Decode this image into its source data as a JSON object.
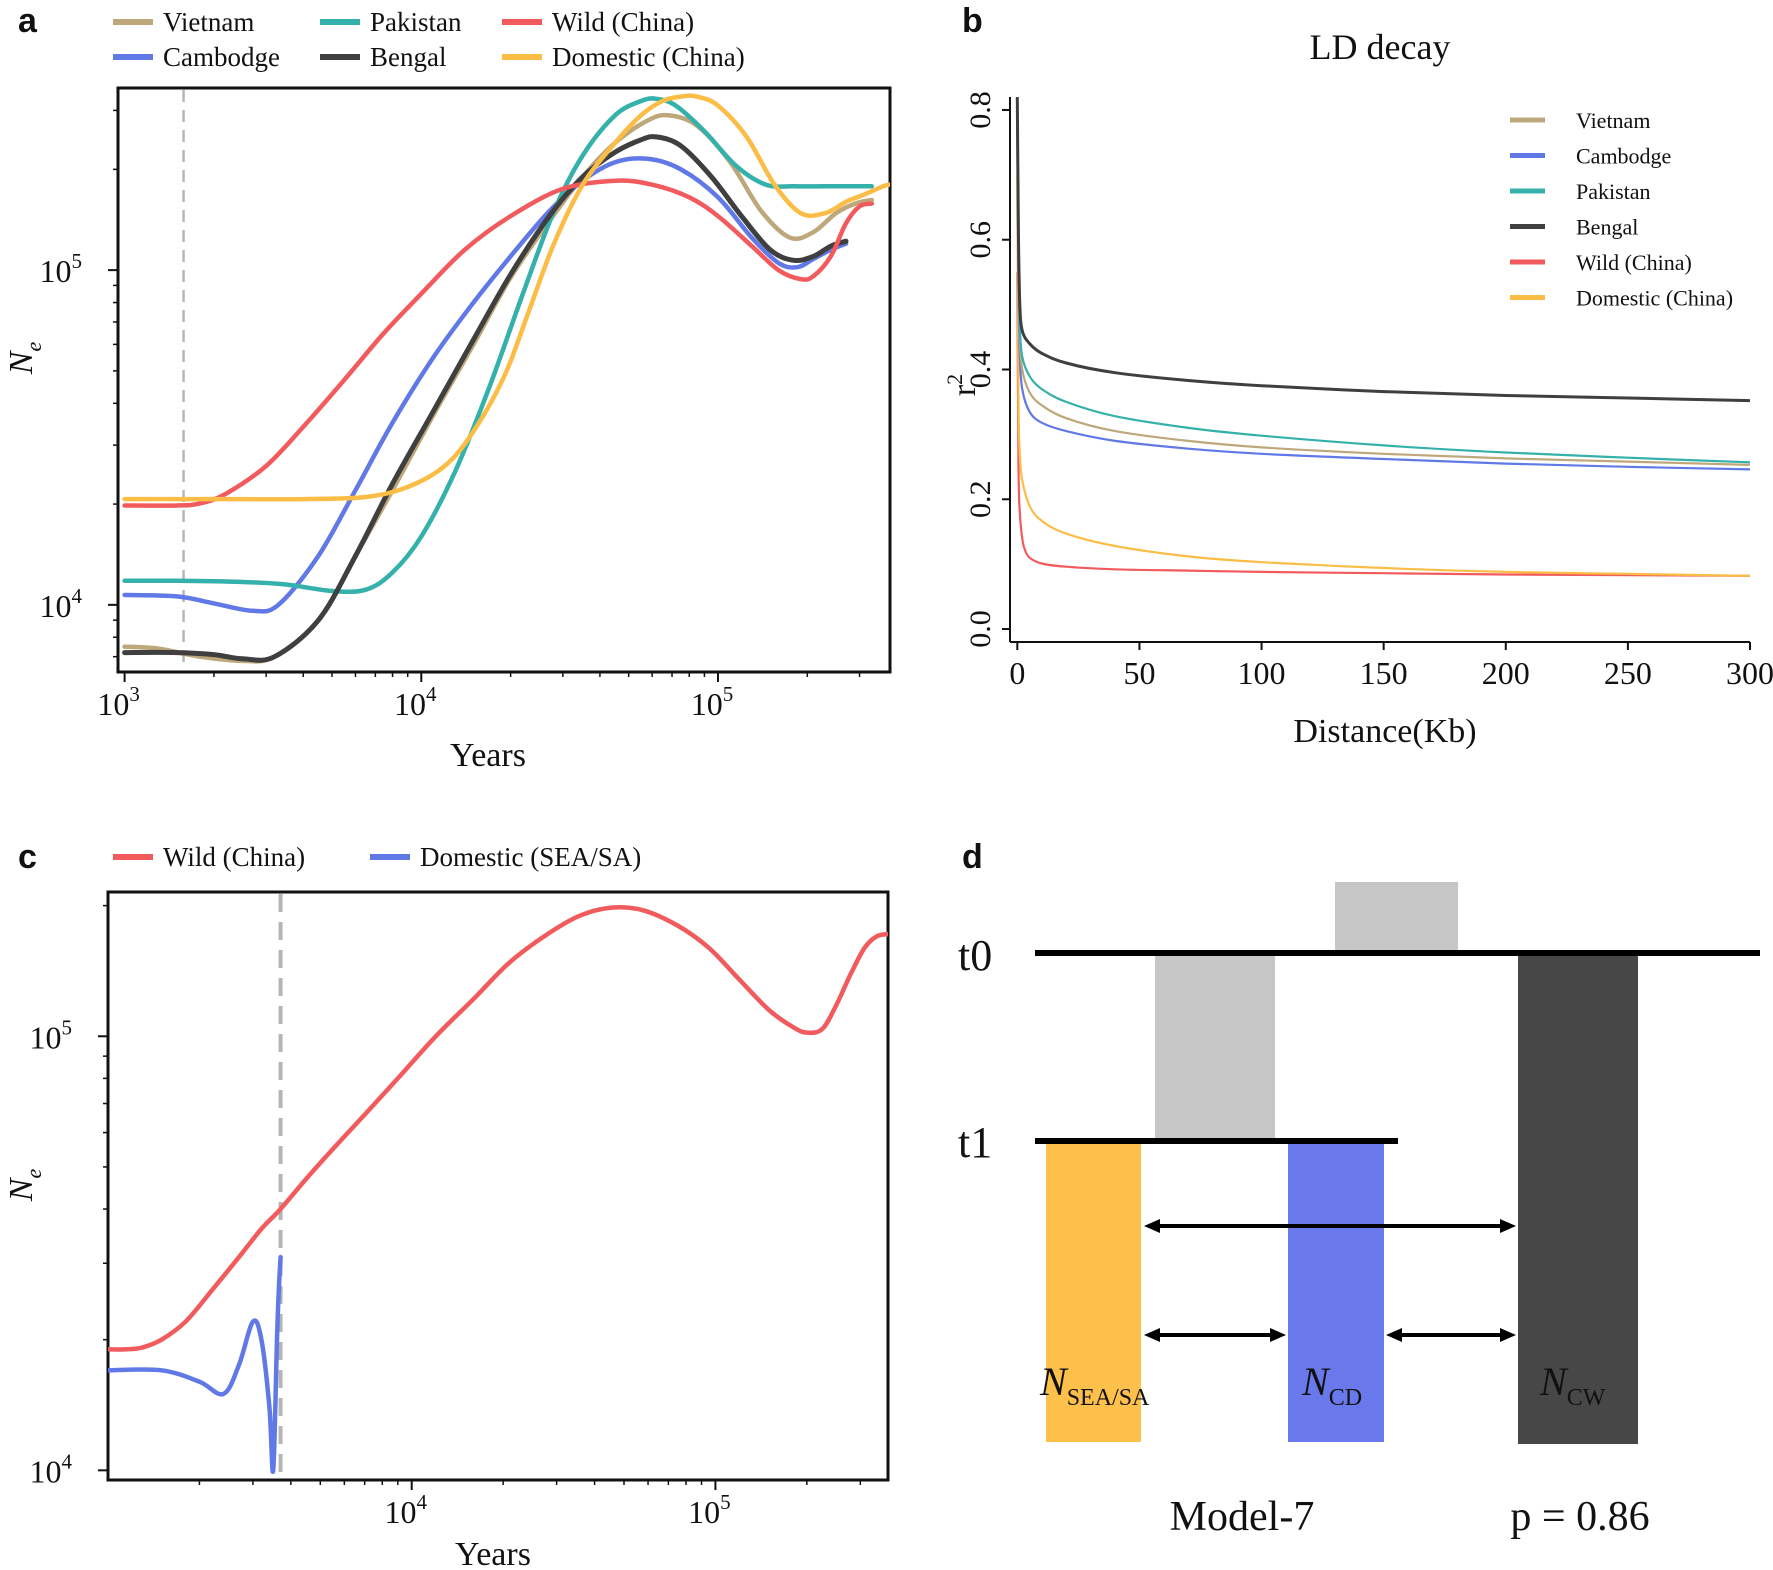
{
  "colors": {
    "Vietnam": "#bea77a",
    "Cambodge": "#6179e6",
    "Pakistan": "#33b1aa",
    "Bengal": "#3f3f3f",
    "Wild (China)": "#f25b5e",
    "Domestic (China)": "#fbbd46",
    "Domestic (SEA/SA)": "#6179e6",
    "NSEA/SA": "#fdc04b",
    "NCD": "#6979eb",
    "NCW": "#474747",
    "ancestral": "#c6c6c6"
  },
  "chart_data": [
    {
      "panel": "a",
      "type": "line",
      "xscale": "log",
      "yscale": "log",
      "xlabel": "Years",
      "ylabel_main": "N",
      "ylabel_sub": "e",
      "xlim": [
        950,
        380000
      ],
      "ylim": [
        6300,
        350000
      ],
      "xticks": [
        {
          "base": "10",
          "exp": "3"
        },
        {
          "base": "10",
          "exp": "4"
        },
        {
          "base": "10",
          "exp": "5"
        }
      ],
      "yticks": [
        {
          "base": "10",
          "exp": "4"
        },
        {
          "base": "10",
          "exp": "5"
        }
      ],
      "vline_x": 1580,
      "series": [
        {
          "name": "Vietnam",
          "x": [
            1000,
            1300,
            1800,
            2500,
            3200,
            4500,
            6000,
            8000,
            11000,
            15000,
            20000,
            27000,
            35000,
            45000,
            58000,
            68000,
            85000,
            110000,
            140000,
            175000,
            210000,
            250000,
            290000,
            330000
          ],
          "y": [
            7500,
            7400,
            7000,
            6800,
            7000,
            9000,
            14000,
            22000,
            37000,
            60000,
            95000,
            140000,
            190000,
            240000,
            280000,
            290000,
            270000,
            210000,
            150000,
            125000,
            130000,
            148000,
            158000,
            162000
          ]
        },
        {
          "name": "Cambodge",
          "x": [
            1000,
            1500,
            2000,
            2700,
            3300,
            4500,
            6000,
            8000,
            11000,
            15000,
            20000,
            27000,
            35000,
            45000,
            58000,
            75000,
            100000,
            130000,
            160000,
            185000,
            210000,
            240000,
            270000
          ],
          "y": [
            10700,
            10600,
            10100,
            9600,
            10000,
            14000,
            22000,
            35000,
            55000,
            80000,
            110000,
            150000,
            185000,
            210000,
            215000,
            200000,
            165000,
            125000,
            105000,
            102000,
            108000,
            115000,
            120000
          ]
        },
        {
          "name": "Pakistan",
          "x": [
            1000,
            1500,
            2500,
            3500,
            5000,
            6500,
            8000,
            10000,
            13000,
            17000,
            22000,
            28000,
            35000,
            45000,
            55000,
            62000,
            72000,
            90000,
            115000,
            145000,
            180000,
            230000,
            280000,
            330000
          ],
          "y": [
            11800,
            11800,
            11700,
            11500,
            11000,
            11100,
            12500,
            16000,
            25000,
            45000,
            85000,
            150000,
            220000,
            290000,
            320000,
            325000,
            310000,
            260000,
            205000,
            180000,
            178000,
            178000,
            178000,
            178000
          ]
        },
        {
          "name": "Bengal",
          "x": [
            1000,
            1500,
            2000,
            2500,
            3200,
            4500,
            6000,
            8000,
            11000,
            15000,
            20000,
            27000,
            35000,
            45000,
            55000,
            62000,
            75000,
            95000,
            120000,
            150000,
            180000,
            210000,
            240000,
            270000
          ],
          "y": [
            7200,
            7200,
            7100,
            6900,
            7000,
            9000,
            14000,
            23000,
            38000,
            62000,
            97000,
            145000,
            190000,
            225000,
            245000,
            250000,
            235000,
            190000,
            145000,
            115000,
            107000,
            110000,
            118000,
            122000
          ]
        },
        {
          "name": "Wild (China)",
          "x": [
            1000,
            1500,
            1800,
            2200,
            3000,
            4000,
            5500,
            7500,
            10000,
            14000,
            20000,
            30000,
            45000,
            60000,
            80000,
            100000,
            130000,
            160000,
            190000,
            210000,
            240000,
            270000,
            300000,
            330000
          ],
          "y": [
            19800,
            19800,
            20100,
            21500,
            26000,
            34000,
            47000,
            65000,
            85000,
            115000,
            145000,
            175000,
            185000,
            180000,
            165000,
            145000,
            118000,
            100000,
            94000,
            96000,
            110000,
            138000,
            155000,
            158000
          ]
        },
        {
          "name": "Domestic (China)",
          "x": [
            1000,
            2000,
            4000,
            6500,
            9000,
            12000,
            15000,
            19000,
            23000,
            28000,
            35000,
            45000,
            55000,
            65000,
            75000,
            85000,
            100000,
            125000,
            155000,
            190000,
            230000,
            270000,
            310000,
            360000,
            380000
          ],
          "y": [
            20700,
            20700,
            20700,
            21000,
            22500,
            26000,
            33000,
            48000,
            75000,
            120000,
            180000,
            240000,
            290000,
            320000,
            330000,
            330000,
            310000,
            250000,
            180000,
            148000,
            148000,
            160000,
            168000,
            178000,
            180000
          ]
        }
      ]
    },
    {
      "panel": "b",
      "type": "line",
      "title": "LD decay",
      "xlabel": "Distance(Kb)",
      "ylabel": "r",
      "ylabel_sup": "2",
      "xlim": [
        -3,
        300
      ],
      "ylim": [
        -0.02,
        0.82
      ],
      "xticks": [
        "0",
        "50",
        "100",
        "150",
        "200",
        "250",
        "300"
      ],
      "yticks": [
        "0.0",
        "0.2",
        "0.4",
        "0.6",
        "0.8"
      ],
      "series": [
        {
          "name": "Vietnam",
          "x": [
            0,
            0.5,
            1,
            2,
            5,
            10,
            20,
            40,
            70,
            100,
            150,
            200,
            250,
            300
          ],
          "y": [
            0.8,
            0.55,
            0.45,
            0.4,
            0.365,
            0.345,
            0.325,
            0.305,
            0.29,
            0.28,
            0.27,
            0.263,
            0.258,
            0.253
          ]
        },
        {
          "name": "Cambodge",
          "x": [
            0,
            0.5,
            1,
            2,
            5,
            10,
            20,
            40,
            70,
            100,
            150,
            200,
            250,
            300
          ],
          "y": [
            0.78,
            0.52,
            0.42,
            0.37,
            0.335,
            0.318,
            0.305,
            0.29,
            0.278,
            0.27,
            0.262,
            0.255,
            0.25,
            0.246
          ]
        },
        {
          "name": "Pakistan",
          "x": [
            0,
            0.5,
            1,
            2,
            5,
            10,
            20,
            40,
            70,
            100,
            150,
            200,
            250,
            300
          ],
          "y": [
            0.8,
            0.58,
            0.47,
            0.42,
            0.39,
            0.37,
            0.35,
            0.328,
            0.31,
            0.298,
            0.283,
            0.272,
            0.264,
            0.257
          ]
        },
        {
          "name": "Bengal",
          "x": [
            0,
            0.5,
            1,
            2,
            5,
            10,
            20,
            40,
            70,
            100,
            150,
            200,
            250,
            300
          ],
          "y": [
            0.82,
            0.6,
            0.5,
            0.46,
            0.44,
            0.425,
            0.41,
            0.395,
            0.383,
            0.375,
            0.366,
            0.36,
            0.356,
            0.352
          ]
        },
        {
          "name": "Wild (China)",
          "x": [
            0,
            0.5,
            1,
            2,
            3,
            5,
            10,
            20,
            40,
            70,
            100,
            150,
            200,
            250,
            300
          ],
          "y": [
            0.55,
            0.25,
            0.18,
            0.14,
            0.123,
            0.11,
            0.101,
            0.096,
            0.092,
            0.09,
            0.088,
            0.086,
            0.084,
            0.083,
            0.082
          ]
        },
        {
          "name": "Domestic (China)",
          "x": [
            0,
            0.5,
            1,
            2,
            5,
            10,
            20,
            40,
            70,
            100,
            150,
            200,
            250,
            300
          ],
          "y": [
            0.7,
            0.35,
            0.27,
            0.23,
            0.19,
            0.167,
            0.147,
            0.128,
            0.112,
            0.103,
            0.094,
            0.088,
            0.085,
            0.082
          ]
        }
      ]
    },
    {
      "panel": "c",
      "type": "line",
      "xscale": "log",
      "yscale": "log",
      "xlabel": "Years",
      "ylabel_main": "N",
      "ylabel_sub": "e",
      "xlim": [
        1000,
        370000
      ],
      "ylim": [
        9500,
        215000
      ],
      "xticks": [
        {
          "base": "10",
          "exp": "4"
        },
        {
          "base": "10",
          "exp": "5"
        }
      ],
      "yticks": [
        {
          "base": "10",
          "exp": "4"
        },
        {
          "base": "10",
          "exp": "5"
        }
      ],
      "vline_x": 3700,
      "series": [
        {
          "name": "Wild (China)",
          "x": [
            1000,
            1150,
            1300,
            1500,
            1800,
            2200,
            2700,
            3200,
            3700,
            4500,
            5500,
            7000,
            9000,
            12000,
            16000,
            21000,
            28000,
            36000,
            46000,
            58000,
            75000,
            95000,
            120000,
            150000,
            180000,
            200000,
            225000,
            250000,
            280000,
            310000,
            340000,
            370000
          ],
          "y": [
            19000,
            19000,
            19200,
            20000,
            22000,
            26000,
            31000,
            36000,
            40000,
            47000,
            55000,
            66000,
            80000,
            100000,
            122000,
            148000,
            172000,
            190000,
            198000,
            195000,
            180000,
            160000,
            135000,
            115000,
            105000,
            102000,
            104000,
            118000,
            140000,
            160000,
            170000,
            172000
          ]
        },
        {
          "name": "Domestic (SEA/SA)",
          "x": [
            1000,
            1500,
            2000,
            2400,
            2700,
            3000,
            3200,
            3400,
            3500,
            3600,
            3650,
            3700
          ],
          "y": [
            17000,
            17000,
            16000,
            15000,
            17500,
            22000,
            20000,
            14000,
            10000,
            20000,
            26000,
            31000
          ]
        }
      ]
    }
  ],
  "panel_labels": {
    "a": "a",
    "b": "b",
    "c": "c",
    "d": "d"
  },
  "legend_a": [
    "Vietnam",
    "Cambodge",
    "Pakistan",
    "Bengal",
    "Wild (China)",
    "Domestic (China)"
  ],
  "legend_b": [
    "Vietnam",
    "Cambodge",
    "Pakistan",
    "Bengal",
    "Wild (China)",
    "Domestic (China)"
  ],
  "legend_c": [
    "Wild (China)",
    "Domestic (SEA/SA)"
  ],
  "model": {
    "t0": "t0",
    "t1": "t1",
    "pops": [
      {
        "main": "N",
        "sub": "SEA/SA"
      },
      {
        "main": "N",
        "sub": "CD"
      },
      {
        "main": "N",
        "sub": "CW"
      }
    ],
    "name": "Model-7",
    "pvalue": "p = 0.86"
  }
}
